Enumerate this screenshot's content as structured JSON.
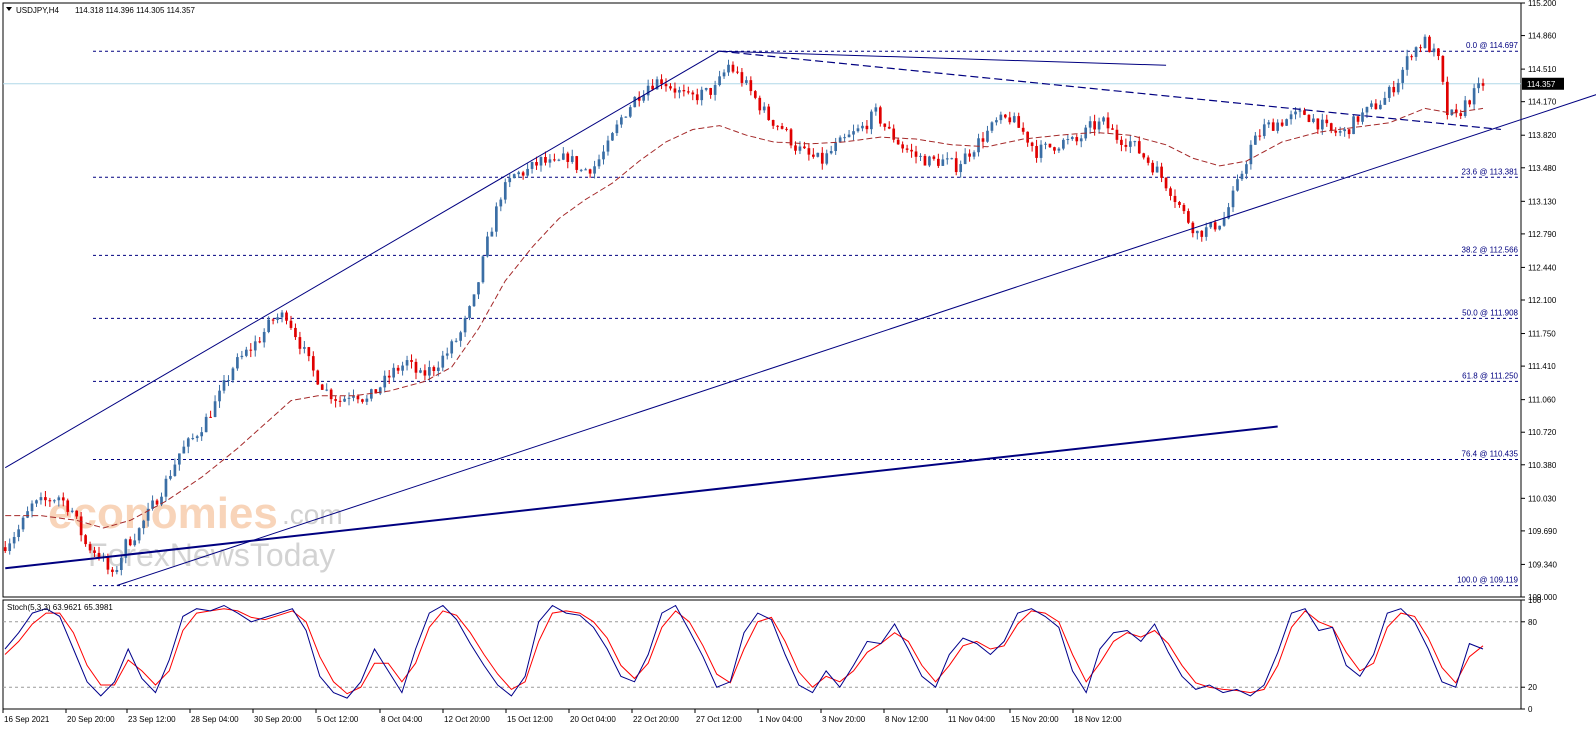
{
  "header": {
    "symbol_label": "USDJPY,H4",
    "ohlc_text": "114.318 114.396 114.305 114.357"
  },
  "colors": {
    "bull": "#3a6ea5",
    "bear": "#e00000",
    "ma": "#a52a2a",
    "trendline": "#000080",
    "fib": "#000080",
    "bid_line": "#b0d8e8",
    "stoch_main": "#00008b",
    "stoch_signal": "#ff0000"
  },
  "watermark": {
    "brand": "economies",
    "suffix": ".com",
    "sub": "ForexNewsToday"
  },
  "current_price": "114.357",
  "chart_data": [
    {
      "type": "candlestick",
      "instrument": "USDJPY",
      "timeframe": "H4",
      "ylim": [
        109.0,
        115.2
      ],
      "y_ticks": [
        "115.200",
        "114.860",
        "114.510",
        "114.170",
        "113.820",
        "113.480",
        "113.130",
        "112.790",
        "112.440",
        "112.100",
        "111.750",
        "111.410",
        "111.060",
        "110.720",
        "110.380",
        "110.030",
        "109.690",
        "109.340",
        "109.000"
      ],
      "x_ticks": [
        "16 Sep 2021",
        "20 Sep 20:00",
        "23 Sep 12:00",
        "28 Sep 04:00",
        "30 Sep 20:00",
        "5 Oct 12:00",
        "8 Oct 04:00",
        "12 Oct 20:00",
        "15 Oct 12:00",
        "20 Oct 04:00",
        "22 Oct 20:00",
        "27 Oct 12:00",
        "1 Nov 04:00",
        "3 Nov 20:00",
        "8 Nov 12:00",
        "11 Nov 04:00",
        "15 Nov 20:00",
        "18 Nov 12:00"
      ],
      "fibonacci": [
        {
          "label": "0.0 @ 114.697",
          "value": 114.697
        },
        {
          "label": "23.6 @ 113.381",
          "value": 113.381
        },
        {
          "label": "38.2 @ 112.566",
          "value": 112.566
        },
        {
          "label": "50.0 @ 111.908",
          "value": 111.908
        },
        {
          "label": "61.8 @ 111.250",
          "value": 111.25
        },
        {
          "label": "76.4 @ 110.435",
          "value": 110.435
        },
        {
          "label": "100.0 @ 109.119",
          "value": 109.119
        }
      ],
      "close_path": [
        [
          0,
          109.55
        ],
        [
          3,
          109.7
        ],
        [
          6,
          109.95
        ],
        [
          9,
          110.0
        ],
        [
          12,
          110.05
        ],
        [
          15,
          109.9
        ],
        [
          18,
          109.55
        ],
        [
          21,
          109.45
        ],
        [
          24,
          109.2
        ],
        [
          27,
          109.55
        ],
        [
          30,
          109.7
        ],
        [
          33,
          109.95
        ],
        [
          36,
          110.2
        ],
        [
          39,
          110.5
        ],
        [
          42,
          110.65
        ],
        [
          45,
          110.85
        ],
        [
          48,
          111.1
        ],
        [
          51,
          111.4
        ],
        [
          54,
          111.55
        ],
        [
          57,
          111.7
        ],
        [
          60,
          111.9
        ],
        [
          63,
          111.95
        ],
        [
          66,
          111.65
        ],
        [
          69,
          111.35
        ],
        [
          72,
          111.15
        ],
        [
          75,
          111.05
        ],
        [
          78,
          111.15
        ],
        [
          81,
          111.05
        ],
        [
          84,
          111.2
        ],
        [
          87,
          111.35
        ],
        [
          90,
          111.45
        ],
        [
          93,
          111.3
        ],
        [
          96,
          111.4
        ],
        [
          99,
          111.55
        ],
        [
          102,
          111.75
        ],
        [
          105,
          112.1
        ],
        [
          108,
          112.7
        ],
        [
          111,
          113.2
        ],
        [
          114,
          113.4
        ],
        [
          117,
          113.45
        ],
        [
          120,
          113.55
        ],
        [
          123,
          113.5
        ],
        [
          126,
          113.6
        ],
        [
          129,
          113.45
        ],
        [
          132,
          113.5
        ],
        [
          135,
          113.7
        ],
        [
          138,
          114.0
        ],
        [
          141,
          114.2
        ],
        [
          144,
          114.35
        ],
        [
          147,
          114.4
        ],
        [
          150,
          114.3
        ],
        [
          153,
          114.2
        ],
        [
          156,
          114.25
        ],
        [
          159,
          114.3
        ],
        [
          162,
          114.55
        ],
        [
          165,
          114.4
        ],
        [
          168,
          114.2
        ],
        [
          171,
          114.0
        ],
        [
          174,
          113.9
        ],
        [
          177,
          113.7
        ],
        [
          180,
          113.6
        ],
        [
          183,
          113.55
        ],
        [
          186,
          113.7
        ],
        [
          189,
          113.8
        ],
        [
          192,
          113.9
        ],
        [
          195,
          114.05
        ],
        [
          198,
          113.85
        ],
        [
          201,
          113.7
        ],
        [
          204,
          113.6
        ],
        [
          207,
          113.55
        ],
        [
          210,
          113.55
        ],
        [
          213,
          113.5
        ],
        [
          216,
          113.65
        ],
        [
          219,
          113.8
        ],
        [
          222,
          113.95
        ],
        [
          225,
          114.0
        ],
        [
          228,
          113.85
        ],
        [
          231,
          113.65
        ],
        [
          234,
          113.7
        ],
        [
          237,
          113.75
        ],
        [
          240,
          113.75
        ],
        [
          243,
          113.9
        ],
        [
          246,
          113.95
        ],
        [
          249,
          113.8
        ],
        [
          252,
          113.75
        ],
        [
          255,
          113.6
        ],
        [
          258,
          113.45
        ],
        [
          261,
          113.25
        ],
        [
          264,
          113.0
        ],
        [
          267,
          112.8
        ],
        [
          270,
          112.85
        ],
        [
          273,
          112.95
        ],
        [
          276,
          113.3
        ],
        [
          279,
          113.7
        ],
        [
          282,
          113.9
        ],
        [
          285,
          113.95
        ],
        [
          288,
          114.0
        ],
        [
          291,
          114.05
        ],
        [
          294,
          113.95
        ],
        [
          297,
          113.85
        ],
        [
          300,
          113.85
        ],
        [
          303,
          114.0
        ],
        [
          306,
          114.1
        ],
        [
          309,
          114.2
        ],
        [
          312,
          114.4
        ],
        [
          315,
          114.7
        ],
        [
          318,
          114.8
        ],
        [
          321,
          114.6
        ],
        [
          323,
          114.05
        ],
        [
          325,
          114.0
        ],
        [
          327,
          114.15
        ],
        [
          329,
          114.25
        ],
        [
          331,
          114.36
        ]
      ],
      "ma_path": [
        [
          0,
          109.85
        ],
        [
          8,
          109.85
        ],
        [
          16,
          109.8
        ],
        [
          22,
          109.72
        ],
        [
          28,
          109.8
        ],
        [
          36,
          110.0
        ],
        [
          44,
          110.25
        ],
        [
          52,
          110.55
        ],
        [
          58,
          110.8
        ],
        [
          64,
          111.05
        ],
        [
          70,
          111.1
        ],
        [
          78,
          111.1
        ],
        [
          86,
          111.15
        ],
        [
          94,
          111.25
        ],
        [
          100,
          111.4
        ],
        [
          106,
          111.8
        ],
        [
          112,
          112.3
        ],
        [
          118,
          112.65
        ],
        [
          124,
          112.95
        ],
        [
          130,
          113.15
        ],
        [
          136,
          113.32
        ],
        [
          142,
          113.55
        ],
        [
          148,
          113.75
        ],
        [
          154,
          113.88
        ],
        [
          160,
          113.92
        ],
        [
          166,
          113.82
        ],
        [
          172,
          113.75
        ],
        [
          180,
          113.73
        ],
        [
          188,
          113.75
        ],
        [
          196,
          113.8
        ],
        [
          204,
          113.78
        ],
        [
          212,
          113.72
        ],
        [
          220,
          113.7
        ],
        [
          228,
          113.78
        ],
        [
          236,
          113.82
        ],
        [
          244,
          113.85
        ],
        [
          252,
          113.82
        ],
        [
          260,
          113.72
        ],
        [
          266,
          113.58
        ],
        [
          272,
          113.5
        ],
        [
          278,
          113.55
        ],
        [
          286,
          113.75
        ],
        [
          294,
          113.85
        ],
        [
          302,
          113.9
        ],
        [
          310,
          113.95
        ],
        [
          318,
          114.1
        ],
        [
          324,
          114.05
        ],
        [
          331,
          114.1
        ]
      ],
      "trendlines": [
        {
          "from": [
            0,
            110.35
          ],
          "to": [
            160,
            114.7
          ],
          "style": "solid",
          "width": 1
        },
        {
          "from": [
            160,
            114.697
          ],
          "to": [
            260,
            114.55
          ],
          "style": "solid",
          "width": 1
        },
        {
          "from": [
            160,
            114.697
          ],
          "to": [
            335,
            113.88
          ],
          "style": "dashed",
          "width": 1.2
        },
        {
          "from": [
            25,
            109.12
          ],
          "to": [
            360,
            114.3
          ],
          "style": "solid",
          "width": 1
        },
        {
          "from": [
            0,
            109.3
          ],
          "to": [
            285,
            110.78
          ],
          "style": "solid",
          "width": 2
        }
      ]
    },
    {
      "type": "line",
      "title": "Stoch(5,3,3) 63.9621 65.3981",
      "ylim": [
        0,
        100
      ],
      "y_ticks": [
        "100",
        "80",
        "20",
        "0"
      ],
      "levels": [
        80,
        20
      ],
      "main_values": [
        55,
        70,
        88,
        92,
        85,
        55,
        25,
        12,
        25,
        55,
        28,
        15,
        45,
        85,
        92,
        90,
        95,
        88,
        80,
        84,
        88,
        92,
        72,
        30,
        15,
        10,
        25,
        55,
        35,
        15,
        55,
        88,
        95,
        82,
        60,
        40,
        22,
        12,
        30,
        80,
        95,
        88,
        86,
        75,
        55,
        30,
        25,
        50,
        88,
        95,
        72,
        48,
        20,
        25,
        70,
        88,
        82,
        50,
        22,
        15,
        35,
        20,
        40,
        62,
        60,
        78,
        55,
        30,
        20,
        50,
        65,
        60,
        50,
        62,
        88,
        92,
        85,
        75,
        35,
        15,
        55,
        70,
        72,
        62,
        78,
        52,
        30,
        18,
        22,
        15,
        18,
        12,
        22,
        52,
        88,
        92,
        72,
        75,
        40,
        30,
        50,
        88,
        92,
        80,
        55,
        25,
        20,
        60,
        55
      ],
      "signal_values": [
        50,
        62,
        78,
        88,
        88,
        70,
        40,
        22,
        22,
        45,
        35,
        22,
        35,
        72,
        88,
        90,
        92,
        90,
        84,
        82,
        86,
        90,
        80,
        48,
        25,
        14,
        20,
        42,
        42,
        25,
        42,
        75,
        90,
        86,
        70,
        50,
        32,
        18,
        25,
        62,
        88,
        90,
        88,
        80,
        65,
        40,
        28,
        42,
        75,
        90,
        80,
        58,
        32,
        24,
        55,
        80,
        84,
        62,
        34,
        20,
        30,
        25,
        35,
        52,
        60,
        70,
        62,
        40,
        25,
        40,
        58,
        62,
        55,
        58,
        78,
        90,
        88,
        80,
        50,
        25,
        42,
        62,
        70,
        66,
        72,
        60,
        40,
        24,
        20,
        18,
        17,
        15,
        18,
        40,
        75,
        90,
        80,
        75,
        52,
        35,
        42,
        75,
        88,
        85,
        65,
        38,
        24,
        48,
        58
      ]
    }
  ]
}
